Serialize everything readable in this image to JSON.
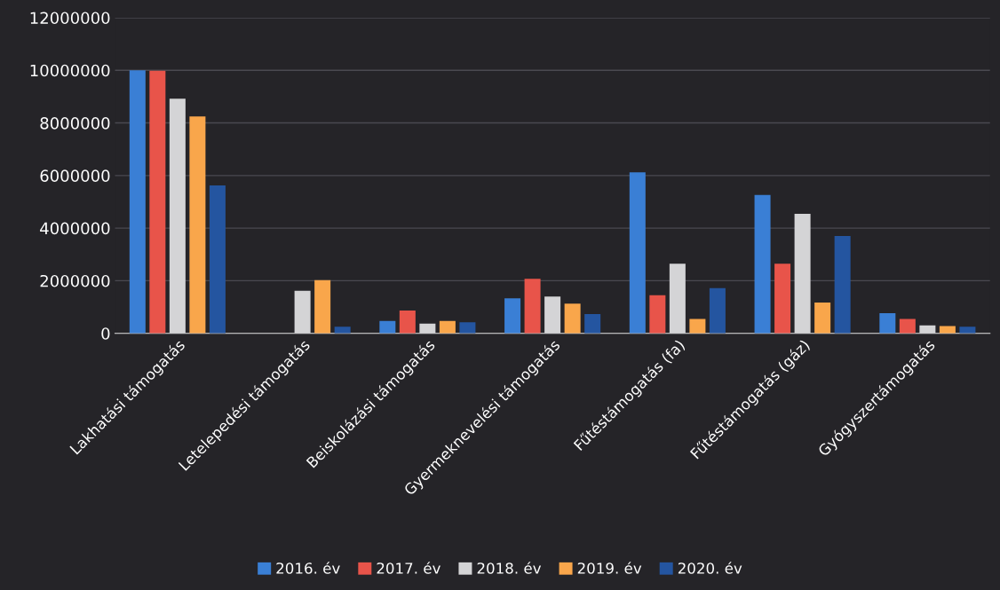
{
  "chart_data": {
    "type": "bar",
    "categories": [
      "Lakhatási támogatás",
      "Letelepedési támogatás",
      "Beiskolázási támogatás",
      "Gyermeknevelési támogatás",
      "Fűtéstámogatás (fa)",
      "Fűtéstámogatás (gáz)",
      "Gyógyszertámogatás"
    ],
    "series": [
      {
        "name": "2016. év",
        "color": "#3a7fd5",
        "values": [
          10000000,
          0,
          470000,
          1330000,
          6120000,
          5260000,
          770000
        ]
      },
      {
        "name": "2017. év",
        "color": "#e8544a",
        "values": [
          9980000,
          0,
          870000,
          2070000,
          1450000,
          2650000,
          550000
        ]
      },
      {
        "name": "2018. év",
        "color": "#d4d4d6",
        "values": [
          8920000,
          1620000,
          370000,
          1400000,
          2650000,
          4540000,
          300000
        ]
      },
      {
        "name": "2019. év",
        "color": "#f9a64b",
        "values": [
          8250000,
          2020000,
          470000,
          1130000,
          550000,
          1170000,
          280000
        ]
      },
      {
        "name": "2020. év",
        "color": "#2455a0",
        "values": [
          5620000,
          250000,
          420000,
          730000,
          1720000,
          3700000,
          250000
        ]
      }
    ],
    "ylim": [
      0,
      12000000
    ],
    "yticks": [
      0,
      2000000,
      4000000,
      6000000,
      8000000,
      10000000,
      12000000
    ],
    "grid": "y",
    "legend": "bottom"
  }
}
